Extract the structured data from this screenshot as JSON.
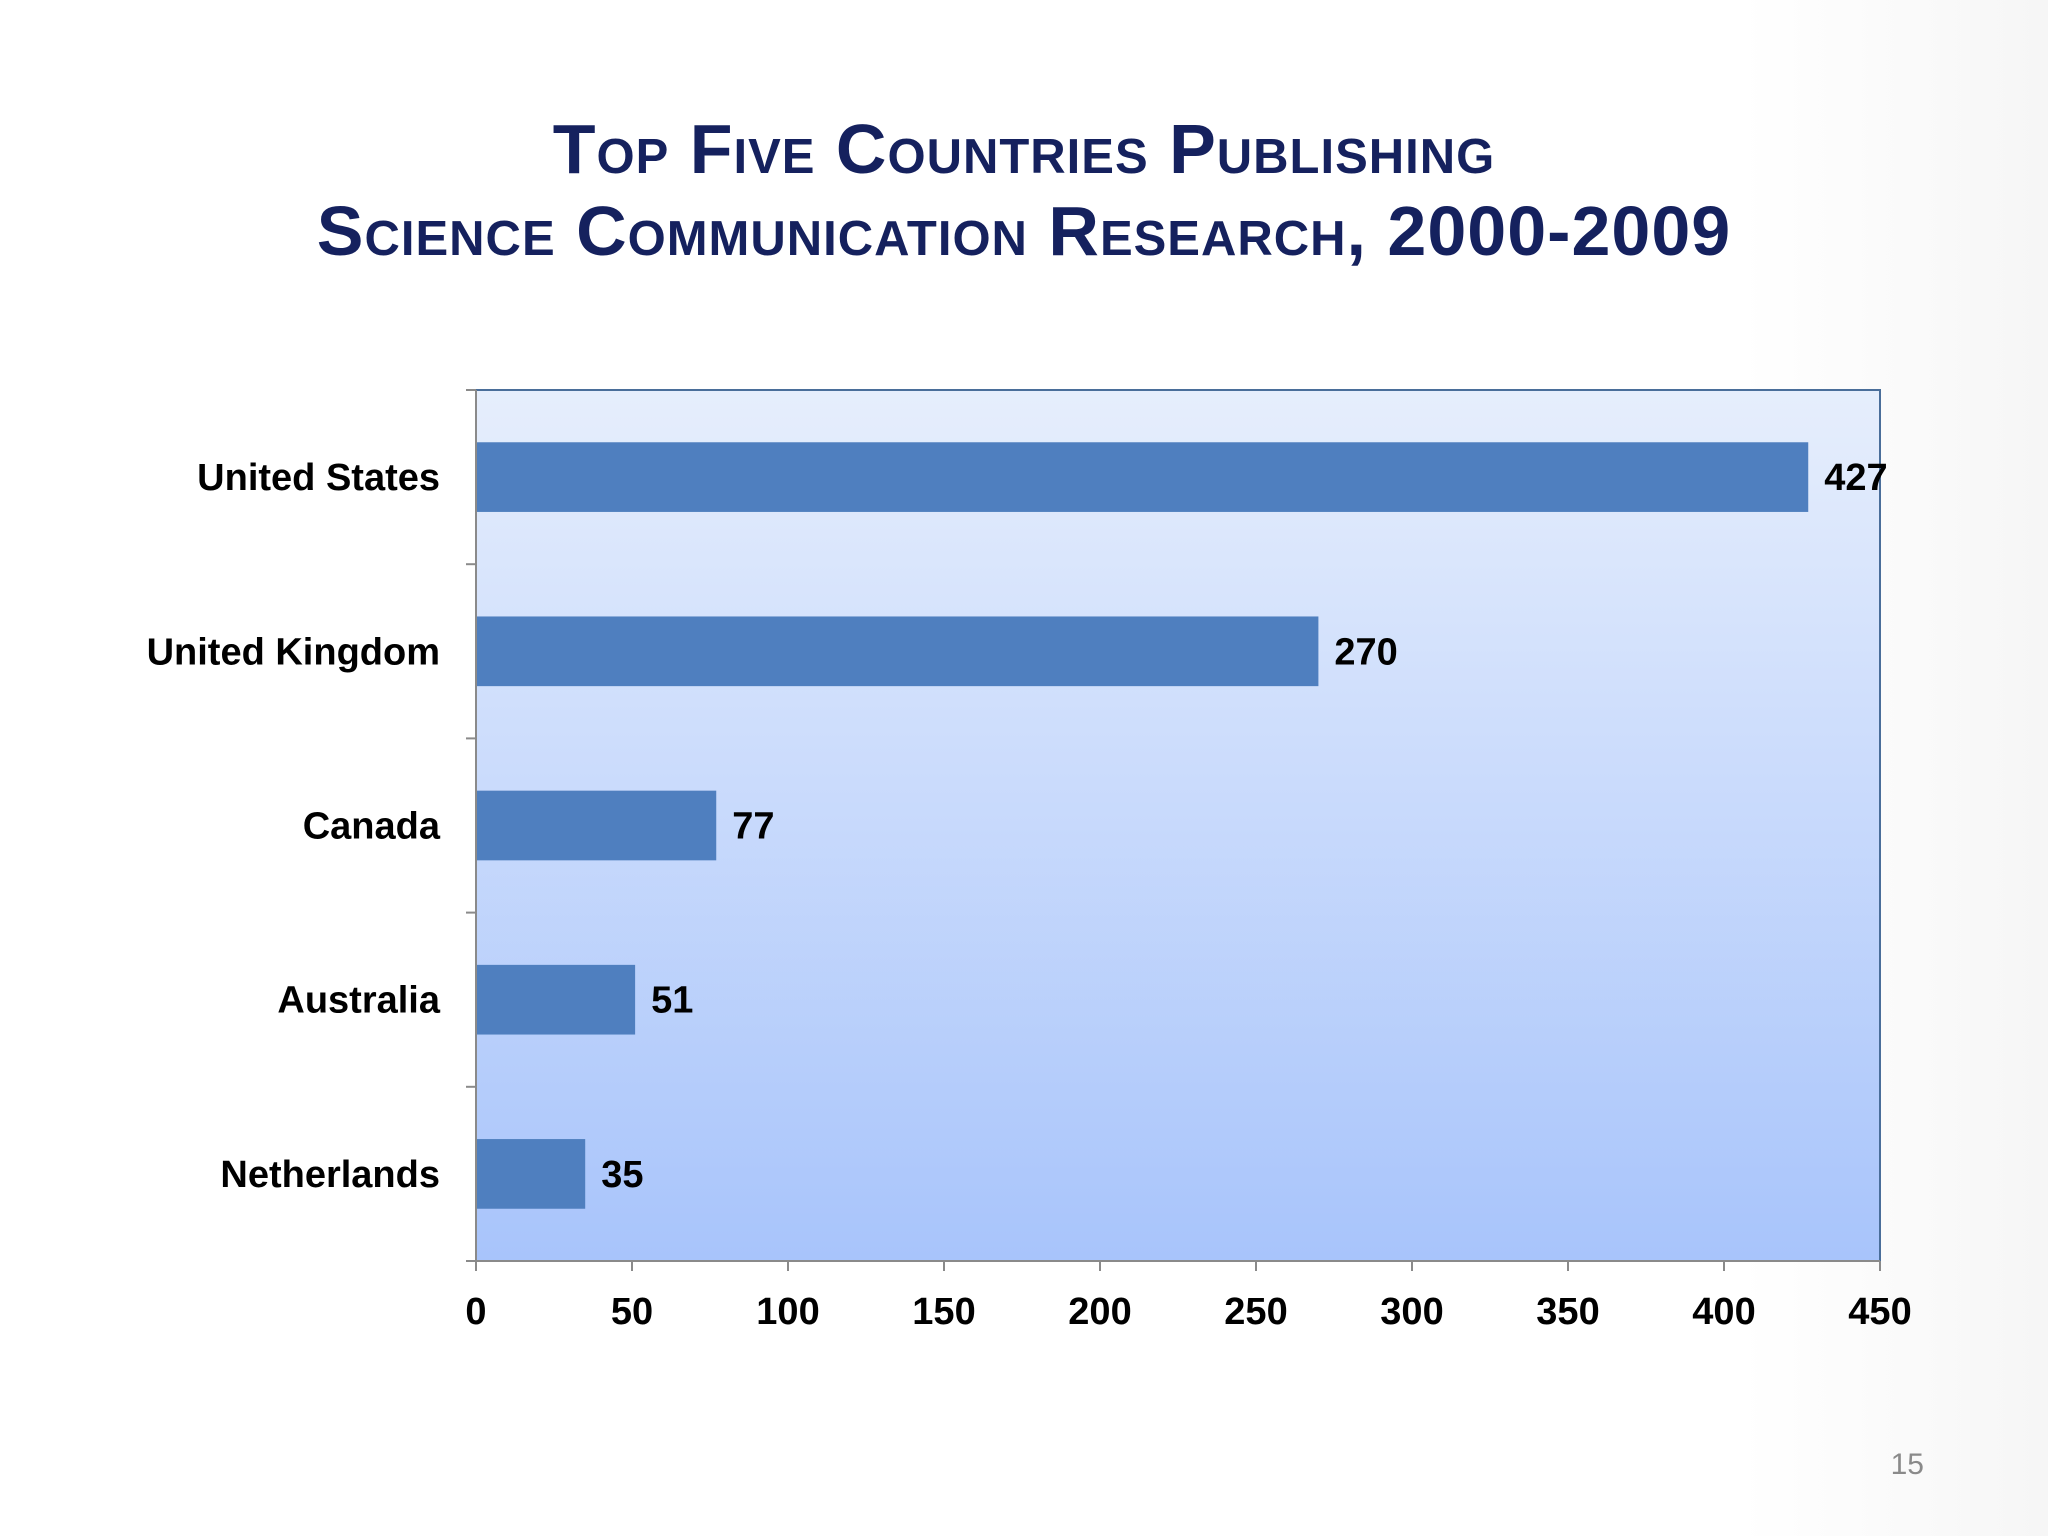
{
  "slide": {
    "title_line1": "Top Five Countries Publishing",
    "title_line2": "Science Communication Research, 2000-2009",
    "page_number": "15"
  },
  "colors": {
    "title": "#15215e",
    "bar": "#4f7fbf",
    "plot_bg_top": "#e6eefc",
    "plot_bg_bottom": "#a8c4fb",
    "plot_border": "#4a6e9a"
  },
  "chart_data": {
    "type": "bar",
    "orientation": "horizontal",
    "categories": [
      "United States",
      "United Kingdom",
      "Canada",
      "Australia",
      "Netherlands"
    ],
    "values": [
      427,
      270,
      77,
      51,
      35
    ],
    "data_labels": [
      "427",
      "270",
      "77",
      "51",
      "35"
    ],
    "x_ticks": [
      "0",
      "50",
      "100",
      "150",
      "200",
      "250",
      "300",
      "350",
      "400",
      "450"
    ],
    "xlim": [
      0,
      450
    ],
    "grid": false,
    "legend": "none"
  }
}
